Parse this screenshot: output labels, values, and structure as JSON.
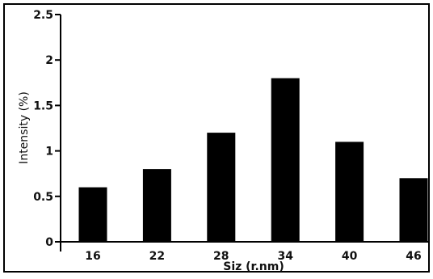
{
  "chart_data": {
    "type": "bar",
    "categories": [
      "16",
      "22",
      "28",
      "34",
      "40",
      "46"
    ],
    "values": [
      0.6,
      0.8,
      1.2,
      1.8,
      1.1,
      0.7
    ],
    "yticks": [
      "0",
      "0.5",
      "1",
      "1.5",
      "2",
      "2.5"
    ],
    "ytick_values": [
      0,
      0.5,
      1,
      1.5,
      2,
      2.5
    ],
    "xlabel": "Siz (r.nm)",
    "ylabel": "Intensity (%)",
    "ylim": [
      0,
      2.5
    ],
    "grid": false,
    "bar_color": "#000000"
  }
}
